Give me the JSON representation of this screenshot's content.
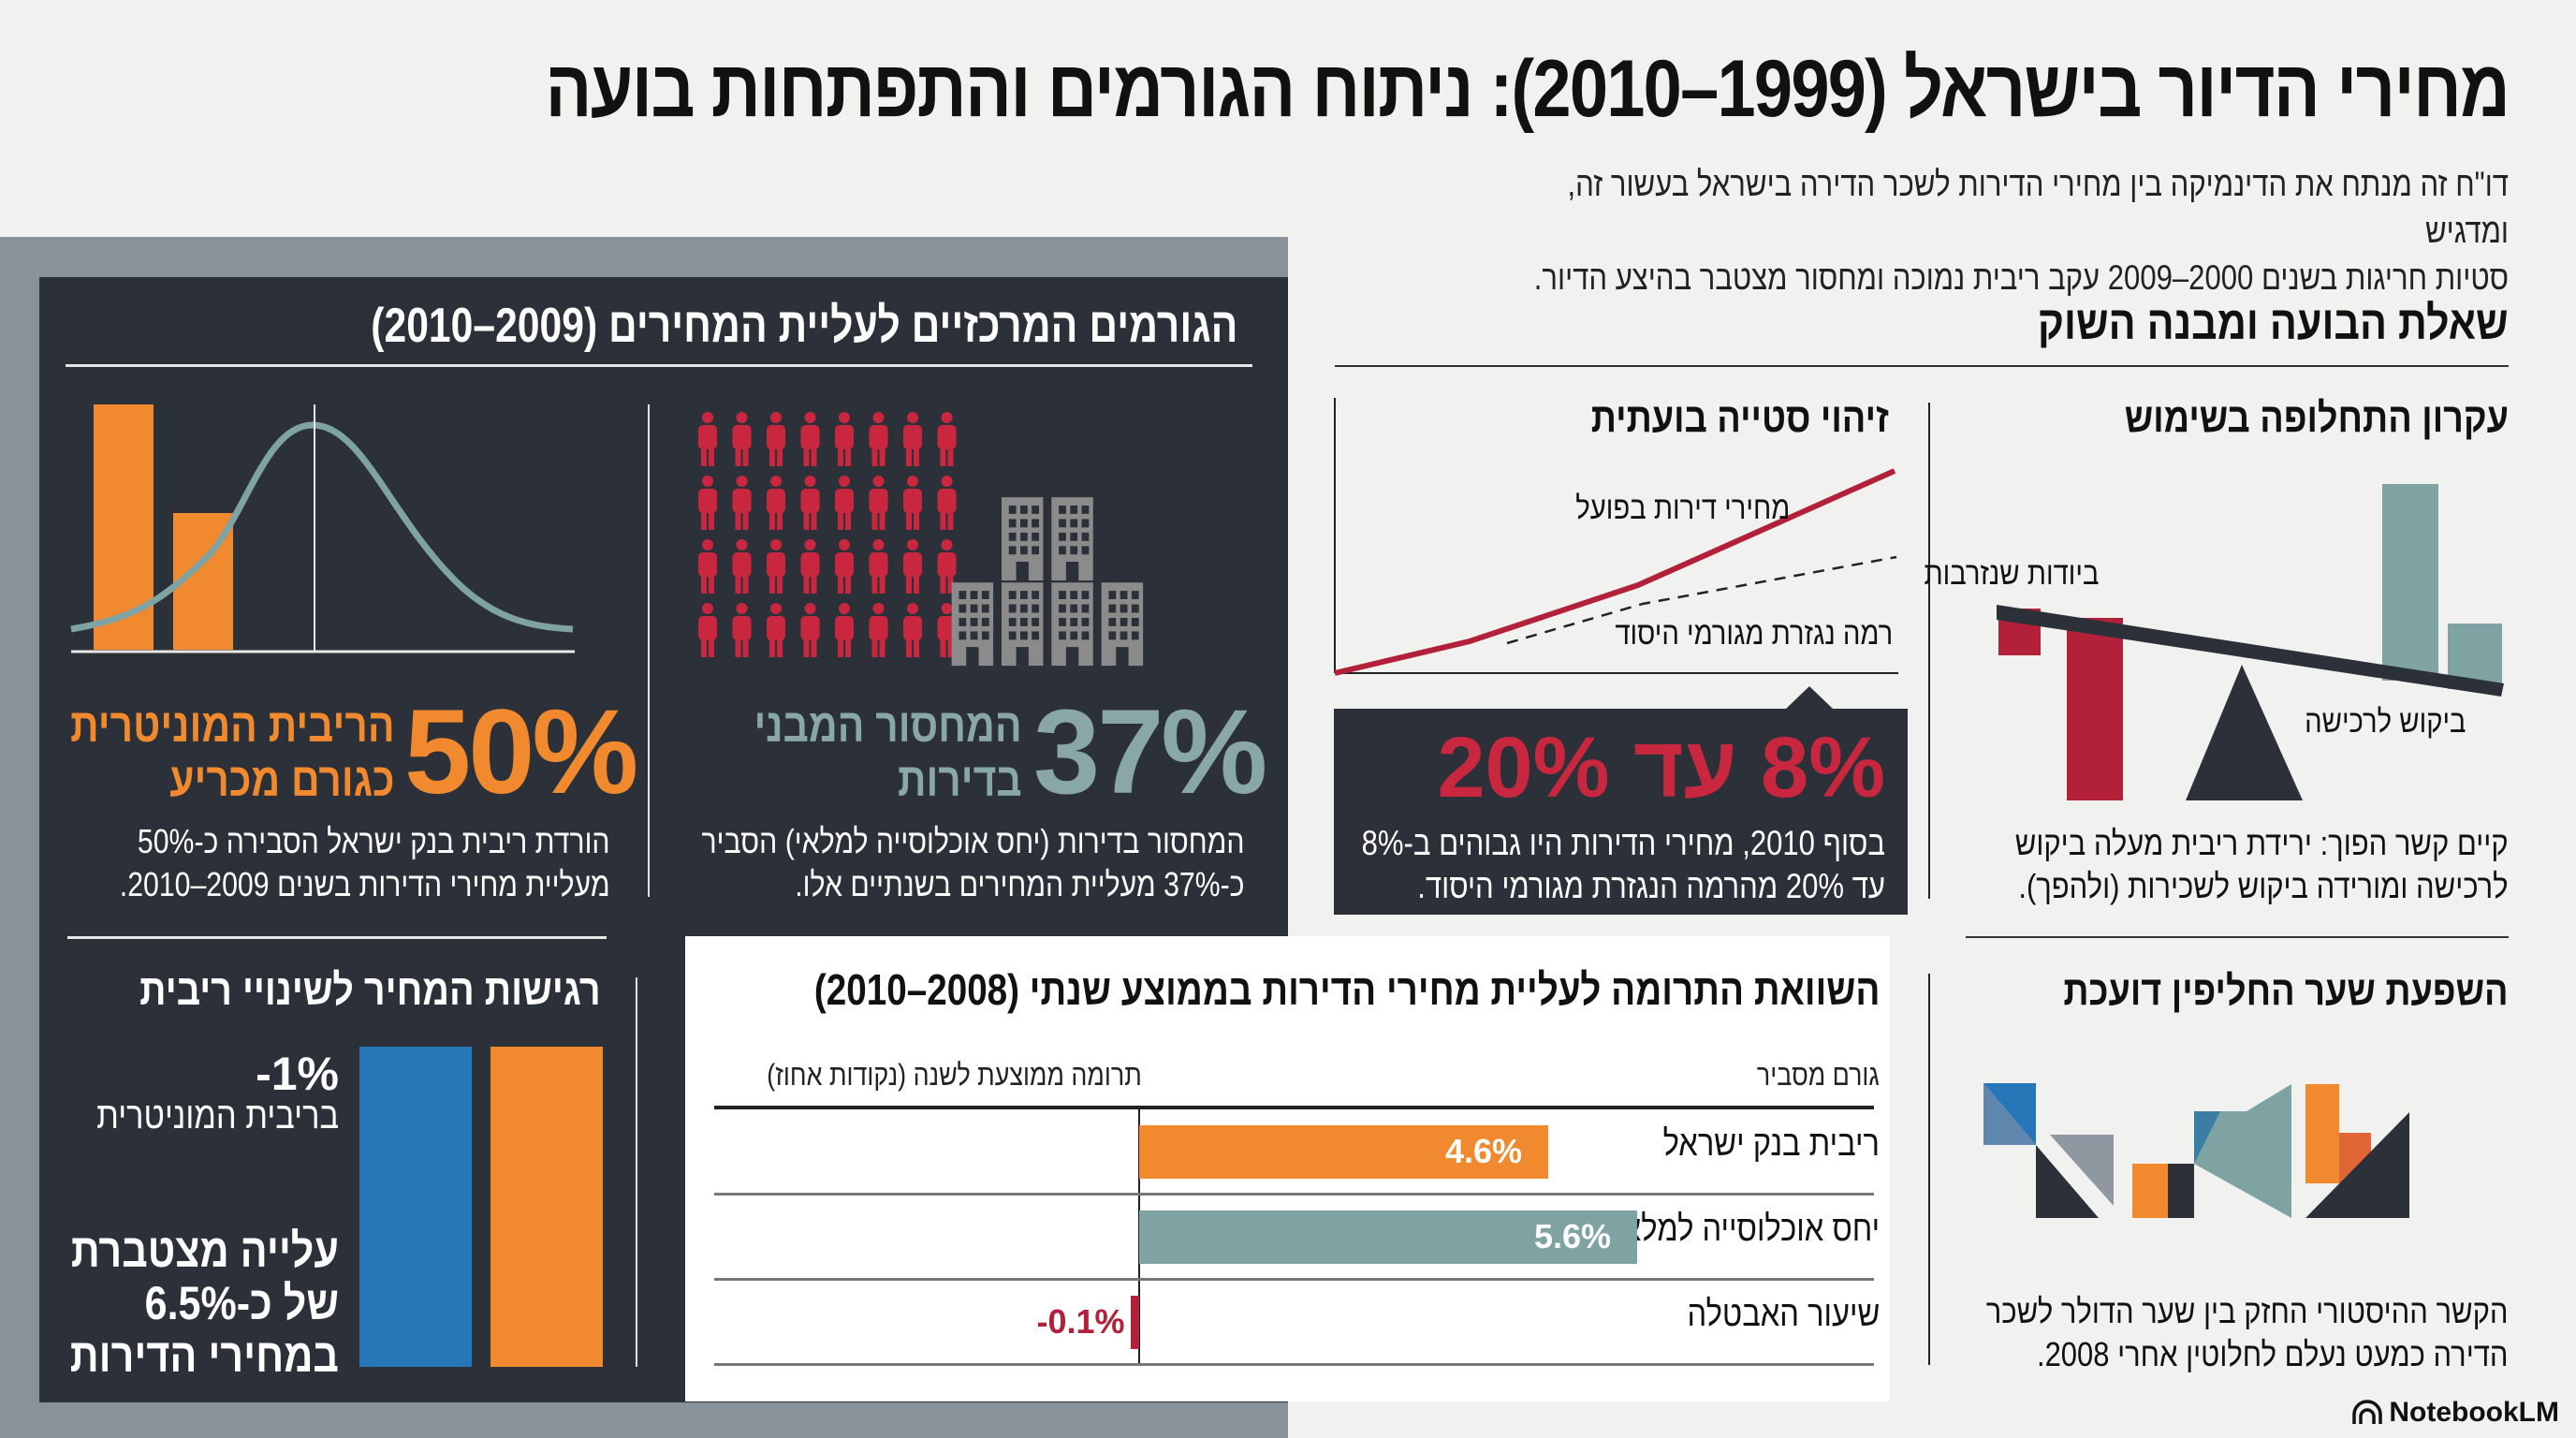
{
  "header": {
    "title": "מחירי הדיור בישראל (1999–2010): ניתוח הגורמים והתפתחות בועה",
    "subtitle_line1": "דו\"ח זה מנתח את הדינמיקה בין מחירי הדירות לשכר הדירה בישראל בעשור זה, ומדגיש",
    "subtitle_line2": "סטיות חריגות בשנים 2000–2009 עקב ריבית נמוכה ומחסור מצטבר בהיצע הדיור."
  },
  "factors_panel": {
    "title": "הגורמים המרכזיים לעליית המחירים (2009–2010)",
    "interest_block": {
      "percent": "50%",
      "label_line1": "הריבית המוניטרית",
      "label_line2": "כגורם מכריע",
      "desc_line1": "הורדת ריבית בנק ישראל הסבירה כ-50%",
      "desc_line2": "מעליית מחירי הדירות בשנים 2009–2010.",
      "icon": "bars-with-bell-curve-icon"
    },
    "shortage_block": {
      "percent": "37%",
      "label_line1": "המחסור המבני",
      "label_line2": "בדירות",
      "desc_line1": "המחסור בדירות (יחס אוכלוסייה למלאי) הסביר",
      "desc_line2": "כ-37% מעליית המחירים בשנתיים אלו.",
      "people_icon_count": 32,
      "building_icon_count": 6,
      "icon": "people-and-buildings-icon"
    },
    "sensitivity_block": {
      "title": "רגישות המחיר לשינויי ריבית",
      "rate_change": "-1%",
      "rate_label": "בריבית המוניטרית",
      "effect_line1": "עלייה מצטברת",
      "effect_line2": "של כ-6.5%",
      "effect_line3": "במחירי הדירות"
    }
  },
  "comparison": {
    "title": "השוואת התרומה לעליית מחירי הדירות בממוצע שנתי (2008–2010)",
    "col_factor": "גורם מסביר",
    "col_contribution": "תרומה ממוצעת לשנה (נקודות אחוז)",
    "rows": [
      {
        "label": "ריבית בנק ישראל",
        "value": 4.6,
        "display": "4.6%",
        "color": "#f18a2e"
      },
      {
        "label": "יחס אוכלוסייה למלאי (מחסור)",
        "value": 5.6,
        "display": "5.6%",
        "color": "#7fa2a3"
      },
      {
        "label": "שיעור האבטלה",
        "value": -0.1,
        "display": "-0.1%",
        "color": "#b3203a"
      }
    ]
  },
  "market": {
    "title": "שאלת הבועה ומבנה השוק",
    "bubble_deviation": {
      "title": "זיהוי סטייה בועתית",
      "actual_label": "מחירי דירות בפועל",
      "fundamental_label": "רמה נגזרת מגורמי היסוד",
      "callout_big": "8% עד 20%",
      "callout_line1": "בסוף 2010, מחירי הדירות היו גבוהים ב-8%",
      "callout_line2": "עד 20% מהרמה הנגזרת מגורמי היסוד."
    },
    "substitution": {
      "title": "עקרון התחלופה בשימוש",
      "left_label": "ביודות שנזרבות",
      "right_label": "ביקוש לרכישה",
      "desc_line1": "קיים קשר הפוך: ירידת ריבית מעלה ביקוש",
      "desc_line2": "לרכישה ומורידה ביקוש לשכירות (ולהפך)."
    },
    "exchange_rate": {
      "title": "השפעת שער החליפין דועכת",
      "desc_line1": "הקשר ההיסטורי החזק בין שער הדולר לשכר",
      "desc_line2": "הדירה כמעט נעלם לחלוטין אחרי 2008."
    }
  },
  "colors": {
    "orange": "#f18a2e",
    "teal": "#7fa2a3",
    "red": "#c9273f",
    "dark": "#2c3038",
    "blue": "#2577b8"
  },
  "brand": "NotebookLM"
}
